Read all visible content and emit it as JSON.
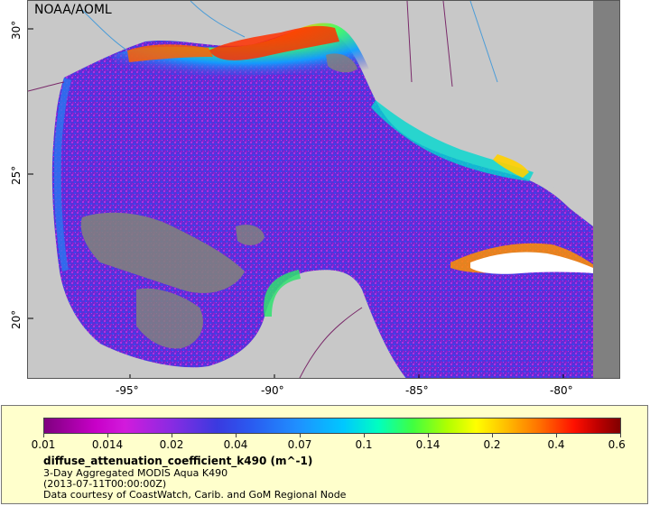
{
  "map": {
    "credit": "NOAA/AOML",
    "lat_labels": [
      "30°",
      "25°",
      "20°"
    ],
    "lon_labels": [
      "-95°",
      "-90°",
      "-85°",
      "-80°"
    ],
    "colors": {
      "land": "#c8c8c8",
      "no_data": "#808080",
      "coast_line": "#4a9cd8",
      "border_line": "#7a2a6a",
      "open_ocean": "#5a2ed8"
    }
  },
  "legend": {
    "tick_labels": [
      "0.01",
      "0.014",
      "0.02",
      "0.04",
      "0.07",
      "0.1",
      "0.14",
      "0.2",
      "0.4",
      "0.6"
    ],
    "variable": "diffuse_attenuation_coefficient_k490 (m^-1)",
    "product": "3-Day Aggregated MODIS Aqua K490",
    "timestamp": "(2013-07-11T00:00:00Z)",
    "courtesy": "Data courtesy of CoastWatch, Carib. and GoM Regional Node"
  }
}
